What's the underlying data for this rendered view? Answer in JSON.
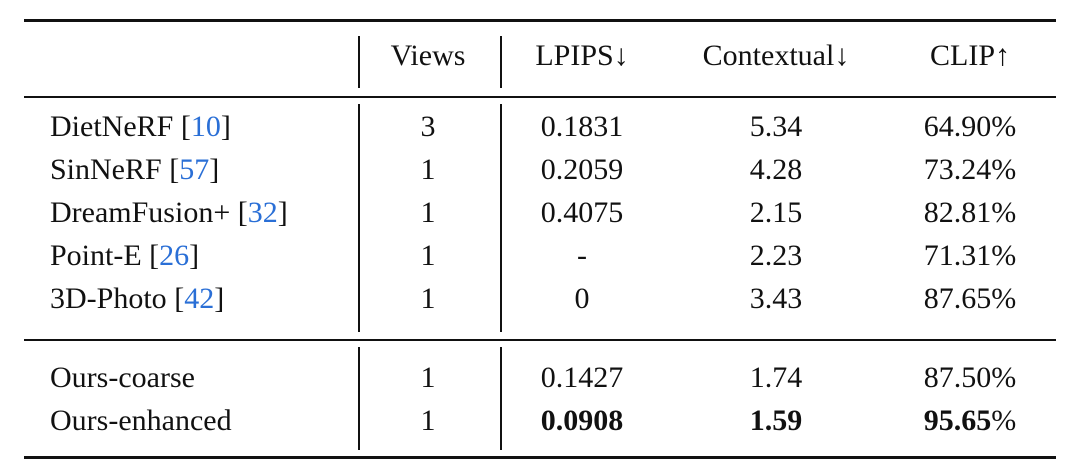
{
  "table": {
    "header": [
      "Views",
      "LPIPS↓",
      "Contextual↓",
      "CLIP↑"
    ],
    "cite_brackets": [
      "[",
      "]"
    ],
    "clip_unit": "%",
    "groups": [
      [
        {
          "method": "DietNeRF",
          "cite": "10",
          "views": "3",
          "lpips": "0.1831",
          "contextual": "5.34",
          "clip": "64.90",
          "bold": false
        },
        {
          "method": "SinNeRF",
          "cite": "57",
          "views": "1",
          "lpips": "0.2059",
          "contextual": "4.28",
          "clip": "73.24",
          "bold": false
        },
        {
          "method": "DreamFusion+",
          "cite": "32",
          "views": "1",
          "lpips": "0.4075",
          "contextual": "2.15",
          "clip": "82.81",
          "bold": false
        },
        {
          "method": "Point-E",
          "cite": "26",
          "views": "1",
          "lpips": "-",
          "contextual": "2.23",
          "clip": "71.31",
          "bold": false
        },
        {
          "method": "3D-Photo",
          "cite": "42",
          "views": "1",
          "lpips": "0",
          "contextual": "3.43",
          "clip": "87.65",
          "bold": false
        }
      ],
      [
        {
          "method": "Ours-coarse",
          "views": "1",
          "lpips": "0.1427",
          "contextual": "1.74",
          "clip": "87.50",
          "bold": false
        },
        {
          "method": "Ours-enhanced",
          "views": "1",
          "lpips": "0.0908",
          "contextual": "1.59",
          "clip": "95.65",
          "bold": true
        }
      ]
    ]
  }
}
